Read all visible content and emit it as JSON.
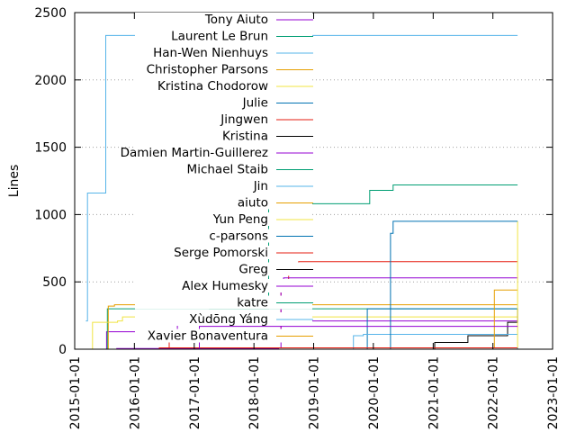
{
  "chart_data": {
    "type": "line",
    "title": "",
    "xlabel": "",
    "ylabel": "Lines",
    "xlim": [
      "2015-01-01",
      "2023-01-01"
    ],
    "ylim": [
      0,
      2500
    ],
    "x_ticks": [
      "2015-01-01",
      "2016-01-01",
      "2017-01-01",
      "2018-01-01",
      "2019-01-01",
      "2020-01-01",
      "2021-01-01",
      "2022-01-01",
      "2023-01-01"
    ],
    "y_ticks": [
      0,
      500,
      1000,
      1500,
      2000,
      2500
    ],
    "grid": "horizontal dotted",
    "legend_position": "top-right",
    "series": [
      {
        "name": "Tony Aiuto",
        "color": "#9400d3",
        "points": [
          [
            "2015-07-01",
            0
          ],
          [
            "2015-07-15",
            130
          ],
          [
            "2016-09-15",
            130
          ],
          [
            "2016-09-20",
            210
          ],
          [
            "2022-06-01",
            210
          ]
        ]
      },
      {
        "name": "Laurent Le Brun",
        "color": "#009e73",
        "points": [
          [
            "2015-07-01",
            0
          ],
          [
            "2015-07-20",
            300
          ],
          [
            "2022-06-01",
            300
          ]
        ]
      },
      {
        "name": "Han-Wen Nienhuys",
        "color": "#56b4e9",
        "points": [
          [
            "2015-03-10",
            210
          ],
          [
            "2015-03-20",
            1160
          ],
          [
            "2015-07-01",
            1160
          ],
          [
            "2015-07-10",
            2330
          ],
          [
            "2022-06-01",
            2330
          ]
        ]
      },
      {
        "name": "Christopher Parsons",
        "color": "#e69f00",
        "points": [
          [
            "2015-07-10",
            0
          ],
          [
            "2015-07-25",
            320
          ],
          [
            "2015-09-01",
            330
          ],
          [
            "2022-06-01",
            330
          ]
        ]
      },
      {
        "name": "Kristina Chodorow",
        "color": "#f0e442",
        "points": [
          [
            "2015-03-01",
            0
          ],
          [
            "2015-04-20",
            200
          ],
          [
            "2015-09-20",
            210
          ],
          [
            "2015-10-20",
            240
          ],
          [
            "2022-06-01",
            240
          ]
        ]
      },
      {
        "name": "Julie",
        "color": "#0072b2",
        "points": [
          [
            "2019-11-15",
            0
          ],
          [
            "2019-11-25",
            300
          ],
          [
            "2022-06-01",
            300
          ]
        ]
      },
      {
        "name": "Jingwen",
        "color": "#e51e10",
        "points": [
          [
            "2016-07-01",
            0
          ],
          [
            "2016-08-01",
            100
          ],
          [
            "2017-12-01",
            100
          ],
          [
            "2018-06-15",
            480
          ],
          [
            "2018-08-01",
            580
          ],
          [
            "2018-10-01",
            650
          ],
          [
            "2022-06-01",
            650
          ]
        ]
      },
      {
        "name": "Kristina",
        "color": "#000000",
        "points": [
          [
            "2020-12-15",
            0
          ],
          [
            "2021-01-10",
            50
          ],
          [
            "2021-08-01",
            100
          ],
          [
            "2022-04-01",
            200
          ],
          [
            "2022-06-01",
            300
          ]
        ]
      },
      {
        "name": "Damien Martin-Guillerez",
        "color": "#9400d3",
        "points": [
          [
            "2015-09-01",
            0
          ],
          [
            "2015-09-15",
            5
          ],
          [
            "2018-06-01",
            10
          ],
          [
            "2018-06-15",
            500
          ],
          [
            "2018-07-01",
            530
          ],
          [
            "2022-06-01",
            530
          ]
        ]
      },
      {
        "name": "Michael Staib",
        "color": "#009e73",
        "points": [
          [
            "2017-04-01",
            300
          ],
          [
            "2018-01-01",
            300
          ],
          [
            "2018-04-01",
            1080
          ],
          [
            "2019-12-01",
            1080
          ],
          [
            "2019-12-10",
            1180
          ],
          [
            "2020-05-01",
            1220
          ],
          [
            "2022-06-01",
            1220
          ]
        ]
      },
      {
        "name": "Jin",
        "color": "#56b4e9",
        "points": [
          [
            "2019-06-01",
            0
          ],
          [
            "2019-09-01",
            100
          ],
          [
            "2019-11-01",
            110
          ],
          [
            "2022-06-01",
            110
          ]
        ]
      },
      {
        "name": "aiuto",
        "color": "#e69f00",
        "points": [
          [
            "2021-03-01",
            0
          ],
          [
            "2022-01-01",
            10
          ],
          [
            "2022-01-10",
            440
          ],
          [
            "2022-06-01",
            440
          ]
        ]
      },
      {
        "name": "Yun Peng",
        "color": "#f0e442",
        "points": [
          [
            "2022-05-01",
            0
          ],
          [
            "2022-06-01",
            950
          ]
        ]
      },
      {
        "name": "c-parsons",
        "color": "#0072b2",
        "points": [
          [
            "2020-04-01",
            0
          ],
          [
            "2020-04-15",
            860
          ],
          [
            "2020-05-01",
            950
          ],
          [
            "2022-06-01",
            950
          ]
        ]
      },
      {
        "name": "Serge Pomorski",
        "color": "#e51e10",
        "points": [
          [
            "2016-05-01",
            0
          ],
          [
            "2016-06-01",
            10
          ],
          [
            "2022-06-01",
            10
          ]
        ]
      },
      {
        "name": "Greg",
        "color": "#000000",
        "points": [
          [
            "2016-07-01",
            0
          ],
          [
            "2022-06-01",
            5
          ]
        ]
      },
      {
        "name": "Alex Humesky",
        "color": "#9400d3",
        "points": [
          [
            "2016-10-01",
            0
          ],
          [
            "2017-02-01",
            170
          ],
          [
            "2022-06-01",
            170
          ]
        ]
      },
      {
        "name": "katre",
        "color": "#009e73",
        "points": [
          [
            "2015-11-01",
            0
          ],
          [
            "2022-06-01",
            0
          ]
        ]
      },
      {
        "name": "Xùdōng Yáng",
        "color": "#56b4e9",
        "points": [
          [
            "2019-07-01",
            0
          ],
          [
            "2022-06-01",
            10
          ]
        ]
      },
      {
        "name": "Xavier Bonaventura",
        "color": "#e69f00",
        "points": [
          [
            "2015-04-01",
            0
          ],
          [
            "2022-06-01",
            0
          ]
        ]
      }
    ]
  }
}
